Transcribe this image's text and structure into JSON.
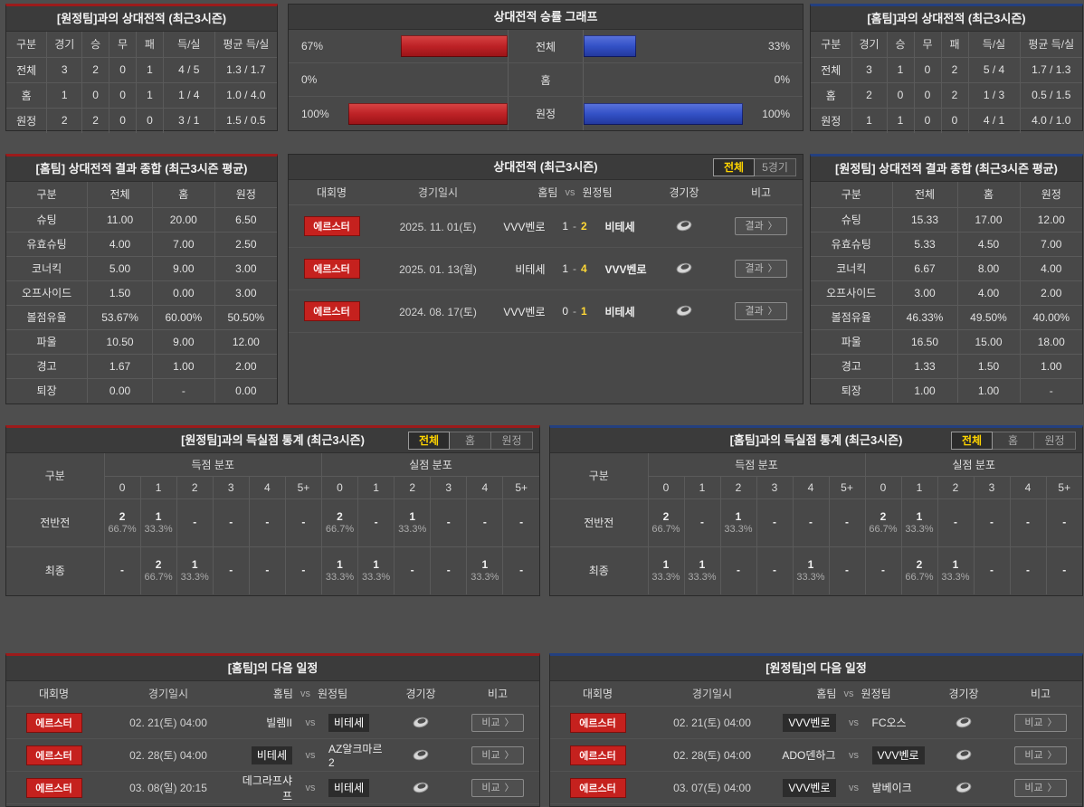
{
  "colors": {
    "accent_red": "#9c1b1b",
    "accent_blue": "#24407f",
    "bar_red": "#bd2226",
    "bar_blue": "#3351c6",
    "winner_yellow": "#ffd836",
    "tab_active_yellow": "#ffd400",
    "badge_red": "#c5211e",
    "panel_bg": "#484848"
  },
  "tl_record": {
    "title": "[원정팀]과의 상대전적 (최근3시즌)",
    "headers": [
      "구분",
      "경기",
      "승",
      "무",
      "패",
      "득/실",
      "평균 득/실"
    ],
    "rows": [
      [
        "전체",
        "3",
        "2",
        "0",
        "1",
        "4 / 5",
        "1.3 / 1.7"
      ],
      [
        "홈",
        "1",
        "0",
        "0",
        "1",
        "1 / 4",
        "1.0 / 4.0"
      ],
      [
        "원정",
        "2",
        "2",
        "0",
        "0",
        "3 / 1",
        "1.5 / 0.5"
      ]
    ]
  },
  "graph": {
    "title": "상대전적 승률 그래프",
    "type": "bar",
    "rows": [
      {
        "label": "전체",
        "home_pct_label": "67%",
        "home_pct": 67,
        "away_pct_label": "33%",
        "away_pct": 33
      },
      {
        "label": "홈",
        "home_pct_label": "0%",
        "home_pct": 0,
        "away_pct_label": "0%",
        "away_pct": 0
      },
      {
        "label": "원정",
        "home_pct_label": "100%",
        "home_pct": 100,
        "away_pct_label": "100%",
        "away_pct": 100
      }
    ]
  },
  "tr_record": {
    "title": "[홈팀]과의 상대전적 (최근3시즌)",
    "headers": [
      "구분",
      "경기",
      "승",
      "무",
      "패",
      "득/실",
      "평균 득/실"
    ],
    "rows": [
      [
        "전체",
        "3",
        "1",
        "0",
        "2",
        "5 / 4",
        "1.7 / 1.3"
      ],
      [
        "홈",
        "2",
        "0",
        "0",
        "2",
        "1 / 3",
        "0.5 / 1.5"
      ],
      [
        "원정",
        "1",
        "1",
        "0",
        "0",
        "4 / 1",
        "4.0 / 1.0"
      ]
    ]
  },
  "home_summary": {
    "title": "[홈팀] 상대전적 결과 종합 (최근3시즌 평균)",
    "headers": [
      "구분",
      "전체",
      "홈",
      "원정"
    ],
    "rows": [
      [
        "슈팅",
        "11.00",
        "20.00",
        "6.50"
      ],
      [
        "유효슈팅",
        "4.00",
        "7.00",
        "2.50"
      ],
      [
        "코너킥",
        "5.00",
        "9.00",
        "3.00"
      ],
      [
        "오프사이드",
        "1.50",
        "0.00",
        "3.00"
      ],
      [
        "볼점유율",
        "53.67%",
        "60.00%",
        "50.50%"
      ],
      [
        "파울",
        "10.50",
        "9.00",
        "12.00"
      ],
      [
        "경고",
        "1.67",
        "1.00",
        "2.00"
      ],
      [
        "퇴장",
        "0.00",
        "-",
        "0.00"
      ]
    ]
  },
  "h2h": {
    "title": "상대전적 (최근3시즌)",
    "tabs": [
      {
        "label": "전체",
        "active": true
      },
      {
        "label": "5경기",
        "active": false
      }
    ],
    "headers": {
      "league": "대회명",
      "date": "경기일시",
      "home": "홈팀",
      "vs": "vs",
      "away": "원정팀",
      "stadium": "경기장",
      "note": "비고"
    },
    "result_button": "결과",
    "arrow": "〉",
    "score_sep": "-",
    "rows": [
      {
        "league": "에르스터",
        "date": "2025. 11. 01(토)",
        "home": "VVV벤로",
        "home_score": "1",
        "away_score": "2",
        "away": "비테세",
        "winner": "away"
      },
      {
        "league": "에르스터",
        "date": "2025. 01. 13(월)",
        "home": "비테세",
        "home_score": "1",
        "away_score": "4",
        "away": "VVV벤로",
        "winner": "away"
      },
      {
        "league": "에르스터",
        "date": "2024. 08. 17(토)",
        "home": "VVV벤로",
        "home_score": "0",
        "away_score": "1",
        "away": "비테세",
        "winner": "away"
      }
    ]
  },
  "away_summary": {
    "title": "[원정팀] 상대전적 결과 종합 (최근3시즌 평균)",
    "headers": [
      "구분",
      "전체",
      "홈",
      "원정"
    ],
    "rows": [
      [
        "슈팅",
        "15.33",
        "17.00",
        "12.00"
      ],
      [
        "유효슈팅",
        "5.33",
        "4.50",
        "7.00"
      ],
      [
        "코너킥",
        "6.67",
        "8.00",
        "4.00"
      ],
      [
        "오프사이드",
        "3.00",
        "4.00",
        "2.00"
      ],
      [
        "볼점유율",
        "46.33%",
        "49.50%",
        "40.00%"
      ],
      [
        "파울",
        "16.50",
        "15.00",
        "18.00"
      ],
      [
        "경고",
        "1.33",
        "1.50",
        "1.00"
      ],
      [
        "퇴장",
        "1.00",
        "1.00",
        "-"
      ]
    ]
  },
  "gs_away": {
    "title": "[원정팀]과의 득실점 통계 (최근3시즌)",
    "tabs": [
      {
        "label": "전체",
        "active": true
      },
      {
        "label": "홈",
        "active": false
      },
      {
        "label": "원정",
        "active": false
      }
    ],
    "col_label": "구분",
    "scored_label": "득점 분포",
    "conceded_label": "실점 분포",
    "score_cols": [
      "0",
      "1",
      "2",
      "3",
      "4",
      "5+"
    ],
    "rows": [
      {
        "label": "전반전",
        "scored": [
          {
            "n": "2",
            "p": "66.7%"
          },
          {
            "n": "1",
            "p": "33.3%"
          },
          {
            "n": "-",
            "p": ""
          },
          {
            "n": "-",
            "p": ""
          },
          {
            "n": "-",
            "p": ""
          },
          {
            "n": "-",
            "p": ""
          }
        ],
        "conceded": [
          {
            "n": "2",
            "p": "66.7%"
          },
          {
            "n": "-",
            "p": ""
          },
          {
            "n": "1",
            "p": "33.3%"
          },
          {
            "n": "-",
            "p": ""
          },
          {
            "n": "-",
            "p": ""
          },
          {
            "n": "-",
            "p": ""
          }
        ]
      },
      {
        "label": "최종",
        "scored": [
          {
            "n": "-",
            "p": ""
          },
          {
            "n": "2",
            "p": "66.7%"
          },
          {
            "n": "1",
            "p": "33.3%"
          },
          {
            "n": "-",
            "p": ""
          },
          {
            "n": "-",
            "p": ""
          },
          {
            "n": "-",
            "p": ""
          }
        ],
        "conceded": [
          {
            "n": "1",
            "p": "33.3%"
          },
          {
            "n": "1",
            "p": "33.3%"
          },
          {
            "n": "-",
            "p": ""
          },
          {
            "n": "-",
            "p": ""
          },
          {
            "n": "1",
            "p": "33.3%"
          },
          {
            "n": "-",
            "p": ""
          }
        ]
      }
    ]
  },
  "gs_home": {
    "title": "[홈팀]과의 득실점 통계 (최근3시즌)",
    "tabs": [
      {
        "label": "전체",
        "active": true
      },
      {
        "label": "홈",
        "active": false
      },
      {
        "label": "원정",
        "active": false
      }
    ],
    "col_label": "구분",
    "scored_label": "득점 분포",
    "conceded_label": "실점 분포",
    "score_cols": [
      "0",
      "1",
      "2",
      "3",
      "4",
      "5+"
    ],
    "rows": [
      {
        "label": "전반전",
        "scored": [
          {
            "n": "2",
            "p": "66.7%"
          },
          {
            "n": "-",
            "p": ""
          },
          {
            "n": "1",
            "p": "33.3%"
          },
          {
            "n": "-",
            "p": ""
          },
          {
            "n": "-",
            "p": ""
          },
          {
            "n": "-",
            "p": ""
          }
        ],
        "conceded": [
          {
            "n": "2",
            "p": "66.7%"
          },
          {
            "n": "1",
            "p": "33.3%"
          },
          {
            "n": "-",
            "p": ""
          },
          {
            "n": "-",
            "p": ""
          },
          {
            "n": "-",
            "p": ""
          },
          {
            "n": "-",
            "p": ""
          }
        ]
      },
      {
        "label": "최종",
        "scored": [
          {
            "n": "1",
            "p": "33.3%"
          },
          {
            "n": "1",
            "p": "33.3%"
          },
          {
            "n": "-",
            "p": ""
          },
          {
            "n": "-",
            "p": ""
          },
          {
            "n": "1",
            "p": "33.3%"
          },
          {
            "n": "-",
            "p": ""
          }
        ],
        "conceded": [
          {
            "n": "-",
            "p": ""
          },
          {
            "n": "2",
            "p": "66.7%"
          },
          {
            "n": "1",
            "p": "33.3%"
          },
          {
            "n": "-",
            "p": ""
          },
          {
            "n": "-",
            "p": ""
          },
          {
            "n": "-",
            "p": ""
          }
        ]
      }
    ]
  },
  "sch_home": {
    "title": "[홈팀]의 다음 일정",
    "headers": {
      "league": "대회명",
      "date": "경기일시",
      "home": "홈팀",
      "vs": "vs",
      "away": "원정팀",
      "stadium": "경기장",
      "note": "비고"
    },
    "compare_button": "비교",
    "arrow": "〉",
    "vs_label": "vs",
    "rows": [
      {
        "league": "에르스터",
        "date": "02. 21(토) 04:00",
        "home": "빌렘II",
        "away": "비테세",
        "highlight": "away"
      },
      {
        "league": "에르스터",
        "date": "02. 28(토) 04:00",
        "home": "비테세",
        "away": "AZ알크마르2",
        "highlight": "home"
      },
      {
        "league": "에르스터",
        "date": "03. 08(일) 20:15",
        "home": "데그라프샤프",
        "away": "비테세",
        "highlight": "away"
      }
    ]
  },
  "sch_away": {
    "title": "[원정팀]의 다음 일정",
    "headers": {
      "league": "대회명",
      "date": "경기일시",
      "home": "홈팀",
      "vs": "vs",
      "away": "원정팀",
      "stadium": "경기장",
      "note": "비고"
    },
    "compare_button": "비교",
    "arrow": "〉",
    "vs_label": "vs",
    "rows": [
      {
        "league": "에르스터",
        "date": "02. 21(토) 04:00",
        "home": "VVV벤로",
        "away": "FC오스",
        "highlight": "home"
      },
      {
        "league": "에르스터",
        "date": "02. 28(토) 04:00",
        "home": "ADO덴하그",
        "away": "VVV벤로",
        "highlight": "away"
      },
      {
        "league": "에르스터",
        "date": "03. 07(토) 04:00",
        "home": "VVV벤로",
        "away": "발베이크",
        "highlight": "home"
      }
    ]
  }
}
